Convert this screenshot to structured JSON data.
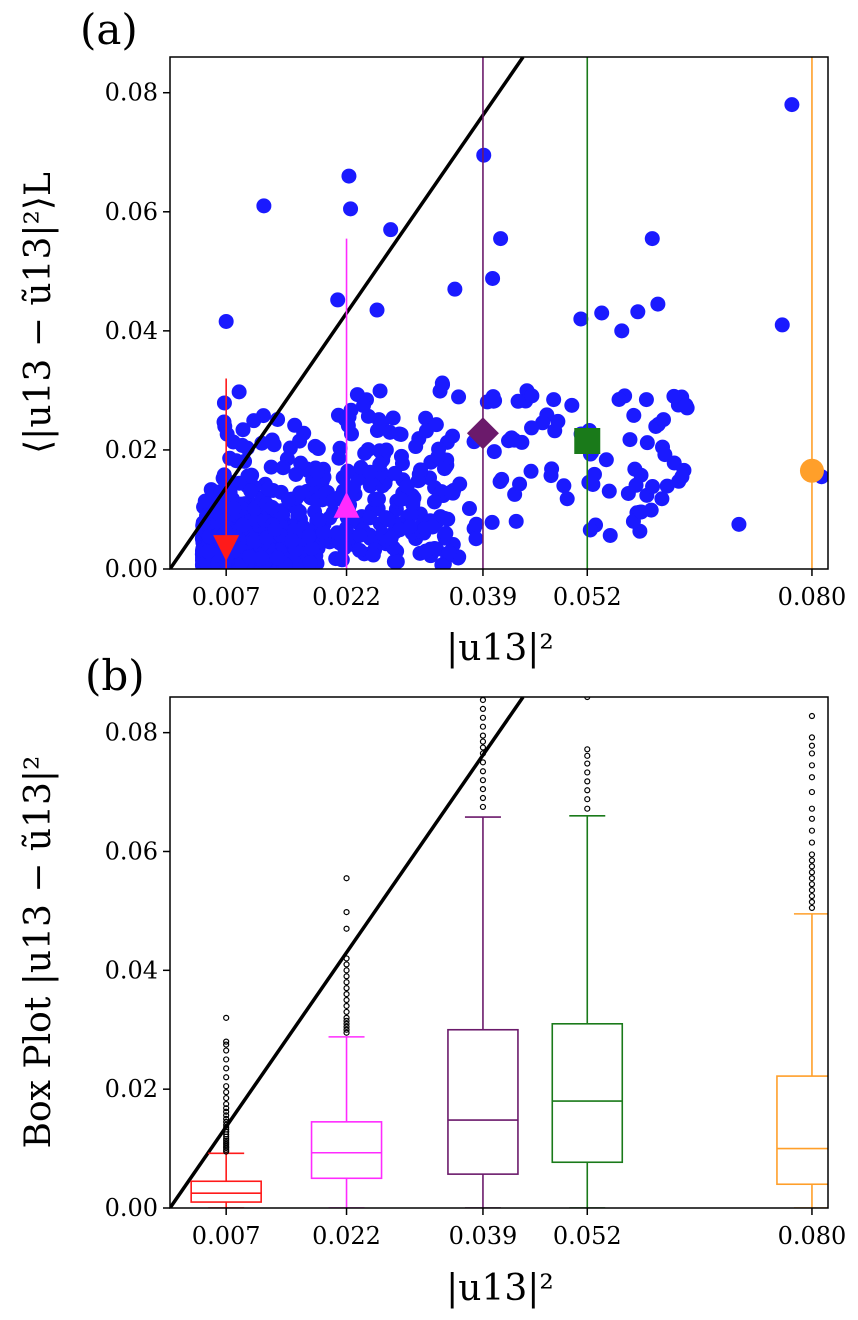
{
  "chart_data": [
    {
      "panel_label": "(a)",
      "type": "scatter",
      "xlabel": "|u13|²",
      "ylabel": "⟨|u13 − ũ13|²⟩L",
      "xlim": [
        0.0,
        0.082
      ],
      "ylim": [
        0.0,
        0.086
      ],
      "xticks": [
        "0.007",
        "0.022",
        "0.039",
        "0.052",
        "0.080"
      ],
      "yticks": [
        "0.00",
        "0.02",
        "0.04",
        "0.06",
        "0.08"
      ],
      "diagonal_line": {
        "x": [
          0.0,
          0.044
        ],
        "y": [
          0.0,
          0.086
        ],
        "color": "#000000"
      },
      "scatter_color": "#1a1aff",
      "markers": [
        {
          "x": 0.007,
          "y": 0.0035,
          "shape": "triangle-down",
          "color": "#ff1a1a",
          "whisker": [
            0.0,
            0.032
          ]
        },
        {
          "x": 0.022,
          "y": 0.0108,
          "shape": "triangle-up",
          "color": "#ff2bff",
          "whisker": [
            0.0,
            0.0555
          ]
        },
        {
          "x": 0.039,
          "y": 0.0228,
          "shape": "diamond",
          "color": "#6b1a6b",
          "whisker": [
            0.0,
            0.086
          ]
        },
        {
          "x": 0.052,
          "y": 0.0215,
          "shape": "square",
          "color": "#1a7a1a",
          "whisker": [
            0.0,
            0.086
          ]
        },
        {
          "x": 0.08,
          "y": 0.0165,
          "shape": "circle",
          "color": "#ff9f2a",
          "whisker": [
            0.0,
            0.086
          ]
        }
      ]
    },
    {
      "panel_label": "(b)",
      "type": "box",
      "xlabel": "|u13|²",
      "ylabel": "Box Plot |u13 − ũ13|²",
      "xlim": [
        0.0,
        0.082
      ],
      "ylim": [
        0.0,
        0.086
      ],
      "xticks": [
        "0.007",
        "0.022",
        "0.039",
        "0.052",
        "0.080"
      ],
      "yticks": [
        "0.00",
        "0.02",
        "0.04",
        "0.06",
        "0.08"
      ],
      "diagonal_line": {
        "x": [
          0.0,
          0.044
        ],
        "y": [
          0.0,
          0.086
        ],
        "color": "#000000"
      },
      "boxes": [
        {
          "x": 0.007,
          "color": "#ff1a1a",
          "whislo": 0.0,
          "q1": 0.001,
          "med": 0.0025,
          "q3": 0.0045,
          "whishi": 0.0092,
          "fliers": [
            0.0095,
            0.0098,
            0.0101,
            0.0104,
            0.0107,
            0.011,
            0.0113,
            0.0116,
            0.012,
            0.0124,
            0.0128,
            0.0132,
            0.0136,
            0.014,
            0.0145,
            0.015,
            0.0156,
            0.0162,
            0.0168,
            0.0175,
            0.0185,
            0.0195,
            0.0205,
            0.022,
            0.0235,
            0.025,
            0.0265,
            0.0275,
            0.028,
            0.032
          ]
        },
        {
          "x": 0.022,
          "color": "#ff2bff",
          "whislo": 0.0,
          "q1": 0.005,
          "med": 0.0093,
          "q3": 0.0145,
          "whishi": 0.0288,
          "fliers": [
            0.0295,
            0.03,
            0.0305,
            0.031,
            0.0315,
            0.032,
            0.033,
            0.034,
            0.035,
            0.036,
            0.037,
            0.038,
            0.039,
            0.04,
            0.041,
            0.042,
            0.047,
            0.0498,
            0.0555
          ]
        },
        {
          "x": 0.039,
          "color": "#6b1a6b",
          "whislo": 0.0,
          "q1": 0.0057,
          "med": 0.0148,
          "q3": 0.03,
          "whishi": 0.0658,
          "fliers": [
            0.0675,
            0.069,
            0.0705,
            0.072,
            0.0735,
            0.075,
            0.0765,
            0.0775,
            0.0785,
            0.0795,
            0.081,
            0.0825,
            0.084,
            0.0855
          ]
        },
        {
          "x": 0.052,
          "color": "#1a7a1a",
          "whislo": 0.0,
          "q1": 0.0077,
          "med": 0.018,
          "q3": 0.031,
          "whishi": 0.066,
          "fliers": [
            0.0672,
            0.0688,
            0.0703,
            0.0718,
            0.0733,
            0.0748,
            0.0761,
            0.0772,
            0.086
          ]
        },
        {
          "x": 0.08,
          "color": "#ff9f2a",
          "whislo": 0.0,
          "q1": 0.004,
          "med": 0.01,
          "q3": 0.0222,
          "whishi": 0.0495,
          "fliers": [
            0.0505,
            0.0515,
            0.0525,
            0.0535,
            0.0545,
            0.0555,
            0.0565,
            0.0575,
            0.0585,
            0.0595,
            0.0615,
            0.0635,
            0.0655,
            0.0672,
            0.07,
            0.0725,
            0.0745,
            0.0765,
            0.0778,
            0.0792,
            0.0828
          ]
        }
      ]
    }
  ]
}
